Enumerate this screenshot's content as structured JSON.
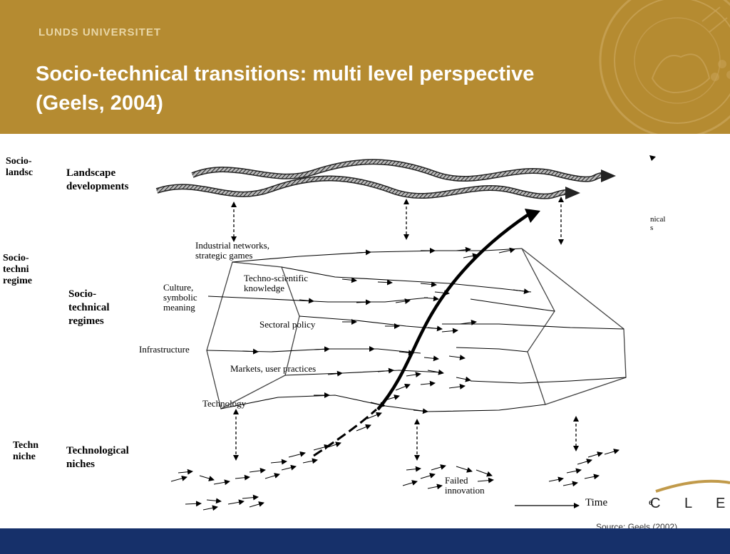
{
  "header": {
    "university": "LUNDS UNIVERSITET",
    "title_line1": "Socio-technical transitions: multi level perspective",
    "title_line2": "(Geels, 2004)"
  },
  "colors": {
    "header_bg": "#b58b31",
    "footer_bg": "#16306a",
    "seal": "#c9a45a"
  },
  "seal_icon": "lund-university-seal-icon",
  "left_labels": {
    "socio_landscape": [
      "Socio-",
      "landsc"
    ],
    "socio_regime": [
      "Socio-",
      "techni",
      "regime"
    ],
    "tech_niches": [
      "Techn",
      "niche"
    ]
  },
  "levels": {
    "landscape": [
      "Landscape",
      "developments"
    ],
    "regimes": [
      "Socio-",
      "technical",
      "regimes"
    ],
    "niches": [
      "Technological",
      "niches"
    ]
  },
  "regime_elements": {
    "industrial": [
      "Industrial networks,",
      "strategic games"
    ],
    "techno": [
      "Techno-scientific",
      "knowledge"
    ],
    "culture": [
      "Culture,",
      "symbolic",
      "meaning"
    ],
    "sectoral": "Sectoral policy",
    "infrastructure": "Infrastructure",
    "markets": "Markets, user practices",
    "technology": "Technology"
  },
  "failed_innovation": [
    "Failed",
    "innovation"
  ],
  "time_label": "Time",
  "right_partial": [
    "nical",
    "s"
  ],
  "cle_fragment": "C L E",
  "partial_e": "e",
  "source": "Source: Geels (2002)"
}
